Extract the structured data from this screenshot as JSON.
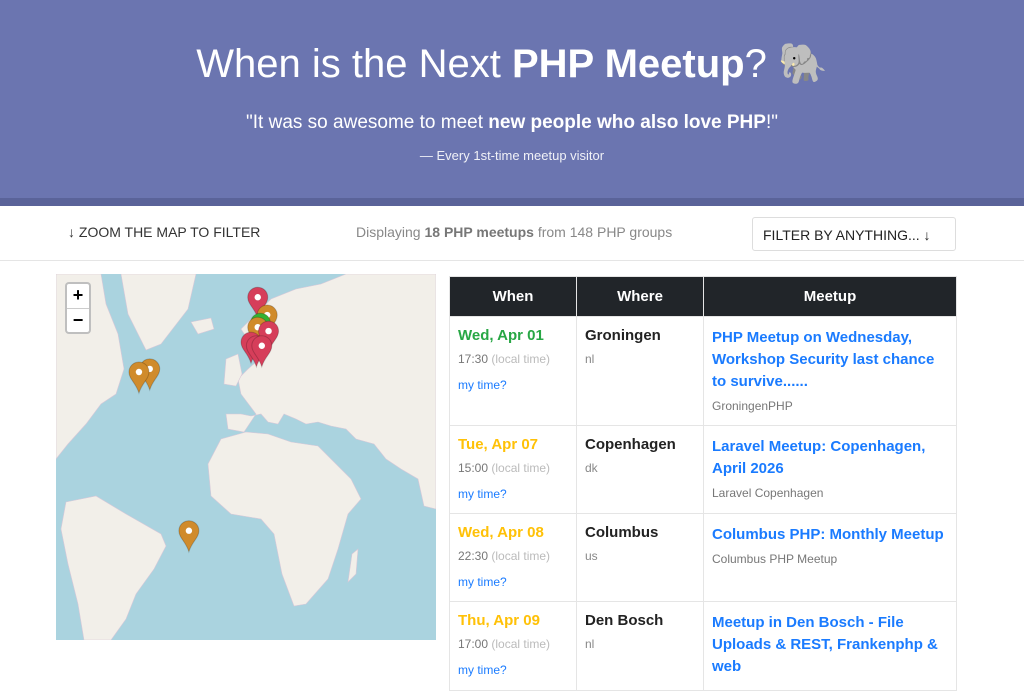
{
  "hero": {
    "title_pre": "When is the Next ",
    "title_bold": "PHP Meetup",
    "title_post": "? ",
    "elephant": "🐘",
    "quote_pre": "\"It was so awesome to meet ",
    "quote_bold": "new people who also love PHP",
    "quote_post": "!\"",
    "attribution": "— Every 1st-time meetup visitor"
  },
  "toolbar": {
    "zoom_label": "↓ ZOOM THE MAP TO FILTER",
    "display_pre": "Displaying ",
    "display_bold": "18 PHP meetups",
    "display_post": " from 148 PHP groups",
    "filter_label": "FILTER BY ANYTHING... ↓"
  },
  "map": {
    "zoom_in": "+",
    "zoom_out": "−",
    "markers": [
      {
        "color": "#d63e5a",
        "lon": 5,
        "lat": 60
      },
      {
        "color": "#d08b2b",
        "lon": 12,
        "lat": 56
      },
      {
        "color": "#34b233",
        "lon": 7,
        "lat": 54
      },
      {
        "color": "#d08b2b",
        "lon": 5,
        "lat": 53
      },
      {
        "color": "#d63e5a",
        "lon": 13,
        "lat": 52
      },
      {
        "color": "#d63e5a",
        "lon": 0,
        "lat": 49
      },
      {
        "color": "#d63e5a",
        "lon": 4,
        "lat": 48
      },
      {
        "color": "#d63e5a",
        "lon": 8,
        "lat": 48
      },
      {
        "color": "#d08b2b",
        "lon": -75,
        "lat": 41
      },
      {
        "color": "#d08b2b",
        "lon": -83,
        "lat": 40
      },
      {
        "color": "#d08b2b",
        "lon": -46,
        "lat": -23
      }
    ]
  },
  "table": {
    "headers": [
      "When",
      "Where",
      "Meetup"
    ],
    "local_label": "(local time)",
    "mytime_label": "my time?",
    "rows": [
      {
        "date": "Wed, Apr 01",
        "date_color": "#28a745",
        "time": "17:30",
        "city": "Groningen",
        "country": "nl",
        "title": "PHP Meetup on Wednesday, Workshop Security last chance to survive......",
        "group": "GroningenPHP"
      },
      {
        "date": "Tue, Apr 07",
        "date_color": "#ffc107",
        "time": "15:00",
        "city": "Copenhagen",
        "country": "dk",
        "title": "Laravel Meetup: Copenhagen, April 2026",
        "group": "Laravel Copenhagen"
      },
      {
        "date": "Wed, Apr 08",
        "date_color": "#ffc107",
        "time": "22:30",
        "city": "Columbus",
        "country": "us",
        "title": "Columbus PHP: Monthly Meetup",
        "group": "Columbus PHP Meetup"
      },
      {
        "date": "Thu, Apr 09",
        "date_color": "#ffc107",
        "time": "17:00",
        "city": "Den Bosch",
        "country": "nl",
        "title": "Meetup in Den Bosch - File Uploads & REST, Frankenphp & web",
        "group": ""
      }
    ]
  }
}
